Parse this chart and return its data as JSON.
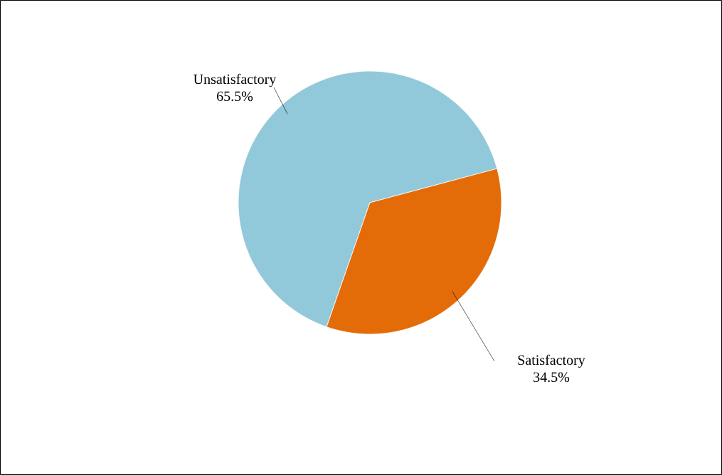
{
  "chart_data": {
    "type": "pie",
    "categories": [
      "Unsatisfactory",
      "Satisfactory"
    ],
    "values": [
      65.5,
      34.5
    ],
    "colors": [
      "#92c9da",
      "#e36c09"
    ],
    "value_labels": [
      "65.5%",
      "34.5%"
    ]
  }
}
